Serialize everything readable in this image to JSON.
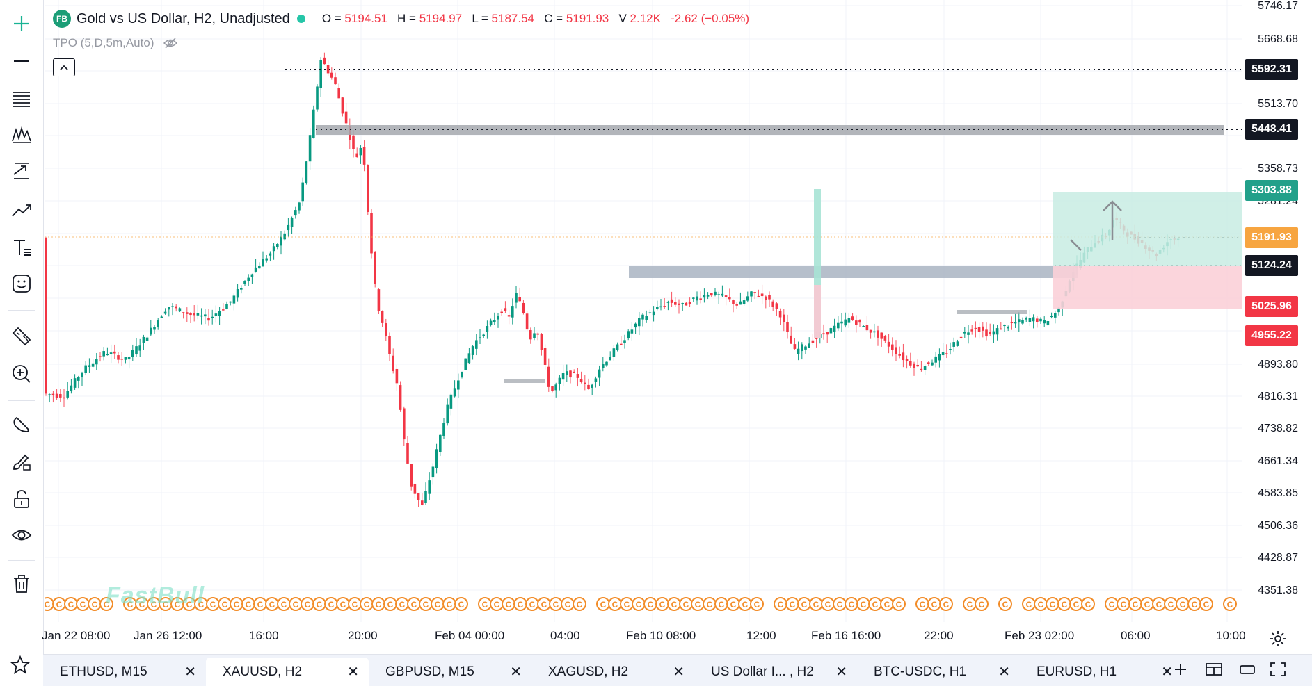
{
  "header": {
    "badge": "FB",
    "title": "Gold vs US Dollar, H2, Unadjusted",
    "ohlc": [
      {
        "key": "O",
        "value": "5194.51"
      },
      {
        "key": "H",
        "value": "5194.97"
      },
      {
        "key": "L",
        "value": "5187.54"
      },
      {
        "key": "C",
        "value": "5191.93"
      }
    ],
    "volume_key": "V",
    "volume": "2.12K",
    "change": "-2.62 (−0.05%)",
    "indicator": "TPO (5,D,5m,Auto)"
  },
  "price_axis": {
    "ticks": [
      "5746.17",
      "5668.68",
      "5513.70",
      "5358.73",
      "5281.24",
      "4893.80",
      "4816.31",
      "4738.82",
      "4661.34",
      "4583.85",
      "4506.36",
      "4428.87",
      "4351.38"
    ],
    "tags": [
      {
        "label": "5592.31",
        "color": "#131722"
      },
      {
        "label": "5448.41",
        "color": "#131722"
      },
      {
        "label": "5303.88",
        "color": "#22a08a"
      },
      {
        "label": "5191.93",
        "color": "#f7a540"
      },
      {
        "label": "5124.24",
        "color": "#131722"
      },
      {
        "label": "5025.96",
        "color": "#f23645"
      },
      {
        "label": "4955.22",
        "color": "#f23645"
      }
    ]
  },
  "time_axis": {
    "labels": [
      "Jan 22 08:00",
      "Jan 26 12:00",
      "16:00",
      "20:00",
      "Feb 04 00:00",
      "04:00",
      "Feb 10 08:00",
      "12:00",
      "Feb 16 16:00",
      "22:00",
      "Feb 23 02:00",
      "06:00",
      "10:00"
    ]
  },
  "watermark": "FastBull",
  "tabs": [
    {
      "label": "ETHUSD, M15",
      "active": false
    },
    {
      "label": "XAUUSD, H2",
      "active": true
    },
    {
      "label": "GBPUSD, M15",
      "active": false
    },
    {
      "label": "XAGUSD, H2",
      "active": false
    },
    {
      "label": "US Dollar I... , H2",
      "active": false
    },
    {
      "label": "BTC-USDC, H1",
      "active": false
    },
    {
      "label": "EURUSD, H1",
      "active": false
    }
  ],
  "colors": {
    "up": "#089981",
    "down": "#f23645",
    "wick_down": "#f7525f",
    "zone_gray": "#a5a8ae",
    "target_zone": "#c8ece3",
    "stop_zone": "#fbd0d8",
    "event_icon": "#f28c28"
  },
  "icons": [
    "cross-icon",
    "line-icon",
    "fib-icon",
    "pattern-icon",
    "prediction-icon",
    "trend-icon",
    "text-icon",
    "emoji-icon",
    "ruler-icon",
    "zoom-icon",
    "magnet-icon",
    "brush-lock-icon",
    "lock-icon",
    "eye-icon",
    "trash-icon",
    "star-icon"
  ]
}
